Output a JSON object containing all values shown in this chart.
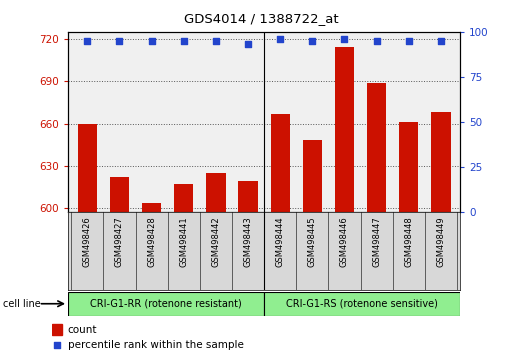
{
  "title": "GDS4014 / 1388722_at",
  "samples": [
    "GSM498426",
    "GSM498427",
    "GSM498428",
    "GSM498441",
    "GSM498442",
    "GSM498443",
    "GSM498444",
    "GSM498445",
    "GSM498446",
    "GSM498447",
    "GSM498448",
    "GSM498449"
  ],
  "counts": [
    660,
    622,
    604,
    617,
    625,
    619,
    667,
    648,
    714,
    689,
    661,
    668
  ],
  "percentile_ranks": [
    95,
    95,
    95,
    95,
    95,
    93,
    96,
    95,
    96,
    95,
    95,
    95
  ],
  "group1_label": "CRI-G1-RR (rotenone resistant)",
  "group2_label": "CRI-G1-RS (rotenone sensitive)",
  "ylim_left": [
    597,
    725
  ],
  "ylim_right": [
    0,
    100
  ],
  "yticks_left": [
    600,
    630,
    660,
    690,
    720
  ],
  "yticks_right": [
    0,
    25,
    50,
    75,
    100
  ],
  "bar_color": "#cc1100",
  "dot_color": "#2244cc",
  "grid_color": "#555555",
  "plot_bg": "#f0f0f0",
  "group_bg": "#90EE90",
  "left_tick_color": "#cc1100",
  "right_tick_color": "#2244cc",
  "legend_count_color": "#cc1100",
  "legend_pct_color": "#2244cc",
  "label_bg": "#d8d8d8"
}
